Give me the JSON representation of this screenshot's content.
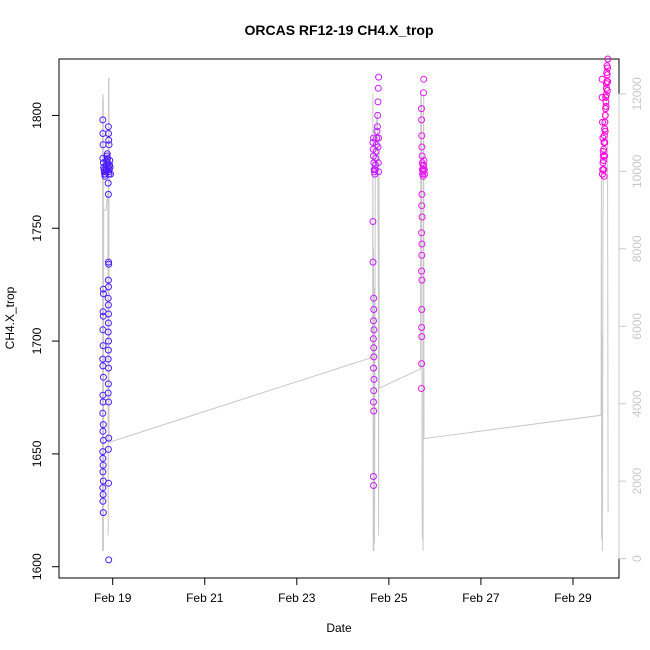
{
  "chart_data": {
    "type": "scatter",
    "title": "ORCAS RF12-19 CH4.X_trop",
    "xlabel": "Date",
    "ylabel": "CH4.X_trop",
    "x_ticks": [
      "Feb 19",
      "Feb 21",
      "Feb 23",
      "Feb 25",
      "Feb 27",
      "Feb 29"
    ],
    "xlim": [
      "2016-02-17T20:00",
      "2016-03-01T00:00"
    ],
    "ylim": [
      1595,
      1825
    ],
    "y_ticks": [
      1600,
      1650,
      1700,
      1750,
      1800
    ],
    "y2_ticks": [
      0,
      2000,
      4000,
      6000,
      8000,
      10000,
      12000
    ],
    "y2lim": [
      -500,
      12900
    ],
    "grid": false,
    "point_color_scale": [
      "#4b1cff",
      "#ff00ff"
    ],
    "series": [
      {
        "flight": 1,
        "color": "#4b1cff",
        "points": [
          [
            "2016-02-18T18:50",
            1798
          ],
          [
            "2016-02-18T18:55",
            1792
          ],
          [
            "2016-02-18T19:00",
            1787
          ],
          [
            "2016-02-18T18:52",
            1781
          ],
          [
            "2016-02-18T19:10",
            1779
          ],
          [
            "2016-02-18T19:20",
            1777
          ],
          [
            "2016-02-18T19:30",
            1776
          ],
          [
            "2016-02-18T19:40",
            1775
          ],
          [
            "2016-02-18T19:50",
            1774
          ],
          [
            "2016-02-18T20:00",
            1773
          ],
          [
            "2016-02-18T20:10",
            1774
          ],
          [
            "2016-02-18T20:20",
            1775
          ],
          [
            "2016-02-18T20:30",
            1776
          ],
          [
            "2016-02-18T20:40",
            1778
          ],
          [
            "2016-02-18T20:50",
            1780
          ],
          [
            "2016-02-18T21:00",
            1782
          ],
          [
            "2016-02-18T21:10",
            1783
          ],
          [
            "2016-02-18T21:20",
            1781
          ],
          [
            "2016-02-18T21:30",
            1779
          ],
          [
            "2016-02-18T21:40",
            1777
          ],
          [
            "2016-02-18T21:50",
            1775
          ],
          [
            "2016-02-18T22:00",
            1774
          ],
          [
            "2016-02-18T22:10",
            1776
          ],
          [
            "2016-02-18T22:20",
            1778
          ],
          [
            "2016-02-18T22:30",
            1780
          ],
          [
            "2016-02-18T22:40",
            1777
          ],
          [
            "2016-02-18T22:50",
            1774
          ],
          [
            "2016-02-18T21:45",
            1795
          ],
          [
            "2016-02-18T21:50",
            1792
          ],
          [
            "2016-02-18T21:55",
            1789
          ],
          [
            "2016-02-18T22:05",
            1787
          ],
          [
            "2016-02-18T21:40",
            1770
          ],
          [
            "2016-02-18T21:45",
            1765
          ],
          [
            "2016-02-18T19:05",
            1723
          ],
          [
            "2016-02-18T19:10",
            1721
          ],
          [
            "2016-02-18T19:00",
            1713
          ],
          [
            "2016-02-18T19:05",
            1711
          ],
          [
            "2016-02-18T18:55",
            1705
          ],
          [
            "2016-02-18T19:00",
            1698
          ],
          [
            "2016-02-18T18:50",
            1692
          ],
          [
            "2016-02-18T18:55",
            1689
          ],
          [
            "2016-02-18T19:10",
            1684
          ],
          [
            "2016-02-18T18:55",
            1676
          ],
          [
            "2016-02-18T19:00",
            1673
          ],
          [
            "2016-02-18T18:50",
            1668
          ],
          [
            "2016-02-18T19:05",
            1663
          ],
          [
            "2016-02-18T18:55",
            1660
          ],
          [
            "2016-02-18T19:10",
            1656
          ],
          [
            "2016-02-18T18:50",
            1651
          ],
          [
            "2016-02-18T18:55",
            1648
          ],
          [
            "2016-02-18T19:00",
            1645
          ],
          [
            "2016-02-18T18:55",
            1642
          ],
          [
            "2016-02-18T19:05",
            1638
          ],
          [
            "2016-02-18T18:50",
            1635
          ],
          [
            "2016-02-18T19:00",
            1632
          ],
          [
            "2016-02-18T18:55",
            1629
          ],
          [
            "2016-02-18T19:05",
            1624
          ],
          [
            "2016-02-18T21:50",
            1735
          ],
          [
            "2016-02-18T21:55",
            1734
          ],
          [
            "2016-02-18T21:45",
            1727
          ],
          [
            "2016-02-18T21:50",
            1724
          ],
          [
            "2016-02-18T21:40",
            1719
          ],
          [
            "2016-02-18T21:45",
            1716
          ],
          [
            "2016-02-18T21:50",
            1712
          ],
          [
            "2016-02-18T21:45",
            1708
          ],
          [
            "2016-02-18T21:40",
            1704
          ],
          [
            "2016-02-18T21:50",
            1700
          ],
          [
            "2016-02-18T21:45",
            1696
          ],
          [
            "2016-02-18T21:40",
            1692
          ],
          [
            "2016-02-18T21:50",
            1688
          ],
          [
            "2016-02-18T21:45",
            1681
          ],
          [
            "2016-02-18T21:40",
            1677
          ],
          [
            "2016-02-18T21:50",
            1673
          ],
          [
            "2016-02-18T21:55",
            1657
          ],
          [
            "2016-02-18T21:45",
            1652
          ],
          [
            "2016-02-18T21:50",
            1637
          ],
          [
            "2016-02-18T21:55",
            1603
          ]
        ]
      },
      {
        "flight": 2,
        "color": "#c61cff",
        "points": [
          [
            "2016-02-24T15:40",
            1788
          ],
          [
            "2016-02-24T15:50",
            1785
          ],
          [
            "2016-02-24T16:00",
            1782
          ],
          [
            "2016-02-24T16:10",
            1779
          ],
          [
            "2016-02-24T16:20",
            1776
          ],
          [
            "2016-02-24T16:30",
            1775
          ],
          [
            "2016-02-24T16:40",
            1774
          ],
          [
            "2016-02-24T16:50",
            1776
          ],
          [
            "2016-02-24T17:00",
            1778
          ],
          [
            "2016-02-24T17:10",
            1781
          ],
          [
            "2016-02-24T17:20",
            1784
          ],
          [
            "2016-02-24T17:30",
            1787
          ],
          [
            "2016-02-24T17:40",
            1790
          ],
          [
            "2016-02-24T17:50",
            1793
          ],
          [
            "2016-02-24T18:00",
            1795
          ],
          [
            "2016-02-24T18:10",
            1800
          ],
          [
            "2016-02-24T18:20",
            1806
          ],
          [
            "2016-02-24T18:30",
            1812
          ],
          [
            "2016-02-24T18:40",
            1817
          ],
          [
            "2016-02-24T18:20",
            1786
          ],
          [
            "2016-02-24T18:30",
            1779
          ],
          [
            "2016-02-24T18:40",
            1775
          ],
          [
            "2016-02-24T18:35",
            1790
          ],
          [
            "2016-02-24T16:00",
            1790
          ],
          [
            "2016-02-24T15:40",
            1753
          ],
          [
            "2016-02-24T15:45",
            1735
          ],
          [
            "2016-02-24T16:05",
            1719
          ],
          [
            "2016-02-24T16:10",
            1714
          ],
          [
            "2016-02-24T16:00",
            1709
          ],
          [
            "2016-02-24T16:15",
            1705
          ],
          [
            "2016-02-24T15:55",
            1701
          ],
          [
            "2016-02-24T16:05",
            1697
          ],
          [
            "2016-02-24T16:10",
            1693
          ],
          [
            "2016-02-24T16:00",
            1688
          ],
          [
            "2016-02-24T16:15",
            1683
          ],
          [
            "2016-02-24T16:05",
            1678
          ],
          [
            "2016-02-24T16:00",
            1673
          ],
          [
            "2016-02-24T16:05",
            1669
          ],
          [
            "2016-02-24T15:55",
            1640
          ],
          [
            "2016-02-24T16:00",
            1636
          ]
        ]
      },
      {
        "flight": 3,
        "color": "#e61cf0",
        "points": [
          [
            "2016-02-25T17:00",
            1803
          ],
          [
            "2016-02-25T17:05",
            1798
          ],
          [
            "2016-02-25T17:10",
            1791
          ],
          [
            "2016-02-25T17:15",
            1786
          ],
          [
            "2016-02-25T17:20",
            1782
          ],
          [
            "2016-02-25T17:25",
            1779
          ],
          [
            "2016-02-25T17:30",
            1776
          ],
          [
            "2016-02-25T17:35",
            1774
          ],
          [
            "2016-02-25T17:40",
            1776
          ],
          [
            "2016-02-25T17:45",
            1778
          ],
          [
            "2016-02-25T17:50",
            1775
          ],
          [
            "2016-02-25T17:55",
            1773
          ],
          [
            "2016-02-25T18:00",
            1776
          ],
          [
            "2016-02-25T18:10",
            1778
          ],
          [
            "2016-02-25T18:20",
            1780
          ],
          [
            "2016-02-25T18:30",
            1776
          ],
          [
            "2016-02-25T18:40",
            1774
          ],
          [
            "2016-02-25T17:15",
            1765
          ],
          [
            "2016-02-25T17:10",
            1760
          ],
          [
            "2016-02-25T17:20",
            1755
          ],
          [
            "2016-02-25T17:05",
            1748
          ],
          [
            "2016-02-25T17:15",
            1743
          ],
          [
            "2016-02-25T17:10",
            1738
          ],
          [
            "2016-02-25T17:05",
            1731
          ],
          [
            "2016-02-25T17:15",
            1727
          ],
          [
            "2016-02-25T17:10",
            1714
          ],
          [
            "2016-02-25T17:05",
            1706
          ],
          [
            "2016-02-25T17:10",
            1702
          ],
          [
            "2016-02-25T17:05",
            1690
          ],
          [
            "2016-02-25T17:00",
            1679
          ],
          [
            "2016-02-25T18:10",
            1816
          ],
          [
            "2016-02-25T18:05",
            1810
          ]
        ]
      },
      {
        "flight": 4,
        "color": "#ff00dc",
        "points": [
          [
            "2016-02-29T15:20",
            1774
          ],
          [
            "2016-02-29T15:30",
            1776
          ],
          [
            "2016-02-29T15:40",
            1779
          ],
          [
            "2016-02-29T15:50",
            1782
          ],
          [
            "2016-02-29T16:00",
            1785
          ],
          [
            "2016-02-29T16:10",
            1788
          ],
          [
            "2016-02-29T16:20",
            1791
          ],
          [
            "2016-02-29T16:30",
            1794
          ],
          [
            "2016-02-29T16:40",
            1797
          ],
          [
            "2016-02-29T16:50",
            1800
          ],
          [
            "2016-02-29T17:00",
            1803
          ],
          [
            "2016-02-29T17:10",
            1806
          ],
          [
            "2016-02-29T17:20",
            1809
          ],
          [
            "2016-02-29T17:30",
            1812
          ],
          [
            "2016-02-29T17:40",
            1815
          ],
          [
            "2016-02-29T17:50",
            1818
          ],
          [
            "2016-02-29T18:00",
            1821
          ],
          [
            "2016-02-29T18:10",
            1825
          ],
          [
            "2016-02-29T15:10",
            1816
          ],
          [
            "2016-02-29T15:15",
            1808
          ],
          [
            "2016-02-29T15:25",
            1797
          ],
          [
            "2016-02-29T15:35",
            1790
          ],
          [
            "2016-02-29T15:45",
            1784
          ],
          [
            "2016-02-29T15:55",
            1780
          ],
          [
            "2016-02-29T16:05",
            1776
          ],
          [
            "2016-02-29T16:15",
            1773
          ],
          [
            "2016-02-29T16:25",
            1782
          ],
          [
            "2016-02-29T16:35",
            1788
          ],
          [
            "2016-02-29T16:45",
            1793
          ],
          [
            "2016-02-29T17:05",
            1808
          ],
          [
            "2016-02-29T17:15",
            1804
          ],
          [
            "2016-02-29T17:25",
            1814
          ],
          [
            "2016-02-29T17:35",
            1819
          ],
          [
            "2016-02-29T17:45",
            1822
          ],
          [
            "2016-02-29T17:55",
            1811
          ],
          [
            "2016-02-29T18:05",
            1815
          ]
        ]
      }
    ],
    "altitude_trace": {
      "color": "#c8c8c8",
      "points": [
        [
          "2016-02-18T18:45",
          200
        ],
        [
          "2016-02-18T18:48",
          12000
        ],
        [
          "2016-02-18T19:05",
          11800
        ],
        [
          "2016-02-18T19:10",
          200
        ],
        [
          "2016-02-18T19:20",
          9000
        ],
        [
          "2016-02-18T20:30",
          9000
        ],
        [
          "2016-02-18T21:30",
          9500
        ],
        [
          "2016-02-18T21:40",
          600
        ],
        [
          "2016-02-18T21:50",
          12400
        ],
        [
          "2016-02-18T22:00",
          12400
        ],
        [
          "2016-02-18T22:05",
          3000
        ],
        [
          "2016-02-24T15:30",
          5200
        ],
        [
          "2016-02-24T15:40",
          12000
        ],
        [
          "2016-02-24T15:50",
          200
        ],
        [
          "2016-02-24T16:00",
          8000
        ],
        [
          "2016-02-24T16:10",
          200
        ],
        [
          "2016-02-24T16:20",
          7000
        ],
        [
          "2016-02-24T16:30",
          400
        ],
        [
          "2016-02-24T17:00",
          11000
        ],
        [
          "2016-02-24T18:00",
          11500
        ],
        [
          "2016-02-24T18:30",
          7500
        ],
        [
          "2016-02-24T18:40",
          600
        ],
        [
          "2016-02-24T18:50",
          10500
        ],
        [
          "2016-02-24T19:00",
          4400
        ],
        [
          "2016-02-25T16:30",
          4900
        ],
        [
          "2016-02-25T16:40",
          12100
        ],
        [
          "2016-02-25T17:00",
          11800
        ],
        [
          "2016-02-25T17:20",
          1500
        ],
        [
          "2016-02-25T17:30",
          500
        ],
        [
          "2016-02-25T17:40",
          1500
        ],
        [
          "2016-02-25T17:50",
          200
        ],
        [
          "2016-02-25T18:00",
          11000
        ],
        [
          "2016-02-25T18:10",
          12000
        ],
        [
          "2016-02-25T18:20",
          3100
        ],
        [
          "2016-02-29T14:40",
          3700
        ],
        [
          "2016-02-29T14:50",
          10000
        ],
        [
          "2016-02-29T15:00",
          500
        ],
        [
          "2016-02-29T15:10",
          5800
        ],
        [
          "2016-02-29T15:20",
          200
        ],
        [
          "2016-02-29T15:40",
          8500
        ],
        [
          "2016-02-29T16:00",
          12300
        ],
        [
          "2016-02-29T17:30",
          12000
        ],
        [
          "2016-02-29T18:00",
          11000
        ],
        [
          "2016-02-29T18:20",
          1200
        ]
      ]
    }
  }
}
